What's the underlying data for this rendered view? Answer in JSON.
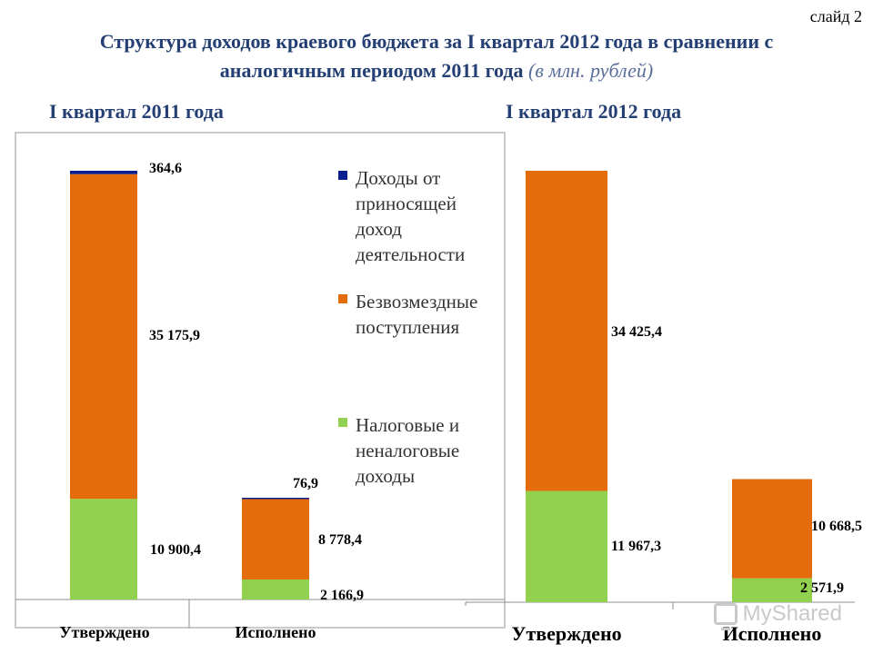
{
  "slide_number": "слайд 2",
  "title": {
    "line1": "Структура доходов краевого бюджета за I квартал 2012 года в сравнении с",
    "line2": "аналогичным периодом 2011 года",
    "unit": "(в млн. рублей)"
  },
  "watermark": "MyShared",
  "colors": {
    "other_income": "#0a1f8f",
    "gratuitous": "#e46c0a",
    "tax": "#92d050",
    "title": "#243f73"
  },
  "chart_data": [
    {
      "type": "bar",
      "stacked": true,
      "title": "I квартал 2011 года",
      "categories": [
        "Утверждено",
        "Исполнено"
      ],
      "series": [
        {
          "name": "Налоговые и неналоговые доходы",
          "values": [
            10900.4,
            2166.9
          ],
          "labels": [
            "10 900,4",
            "2 166,9"
          ]
        },
        {
          "name": "Безвозмездные поступления",
          "values": [
            35175.9,
            8778.4
          ],
          "labels": [
            "35 175,9",
            "8 778,4"
          ]
        },
        {
          "name": "Доходы от приносящей доход деятельности",
          "values": [
            364.6,
            76.9
          ],
          "labels": [
            "364,6",
            "76,9"
          ]
        }
      ],
      "legend": {
        "position": "right",
        "entries": [
          {
            "lines": [
              "Доходы от",
              "приносящей",
              "доход",
              "деятельности"
            ]
          },
          {
            "lines": [
              "Безвозмездные",
              "поступления"
            ]
          },
          {
            "lines": [
              "Налоговые и",
              "неналоговые",
              "доходы"
            ]
          }
        ]
      },
      "grid": false
    },
    {
      "type": "bar",
      "stacked": true,
      "title": "I квартал 2012 года",
      "categories": [
        "Утверждено",
        "Исполнено"
      ],
      "series": [
        {
          "name": "Налоговые и неналоговые доходы",
          "values": [
            11967.3,
            2571.9
          ],
          "labels": [
            "11 967,3",
            "2 571,9"
          ]
        },
        {
          "name": "Безвозмездные поступления",
          "values": [
            34425.4,
            10668.5
          ],
          "labels": [
            "34 425,4",
            "10 668,5"
          ]
        }
      ],
      "grid": false
    }
  ]
}
